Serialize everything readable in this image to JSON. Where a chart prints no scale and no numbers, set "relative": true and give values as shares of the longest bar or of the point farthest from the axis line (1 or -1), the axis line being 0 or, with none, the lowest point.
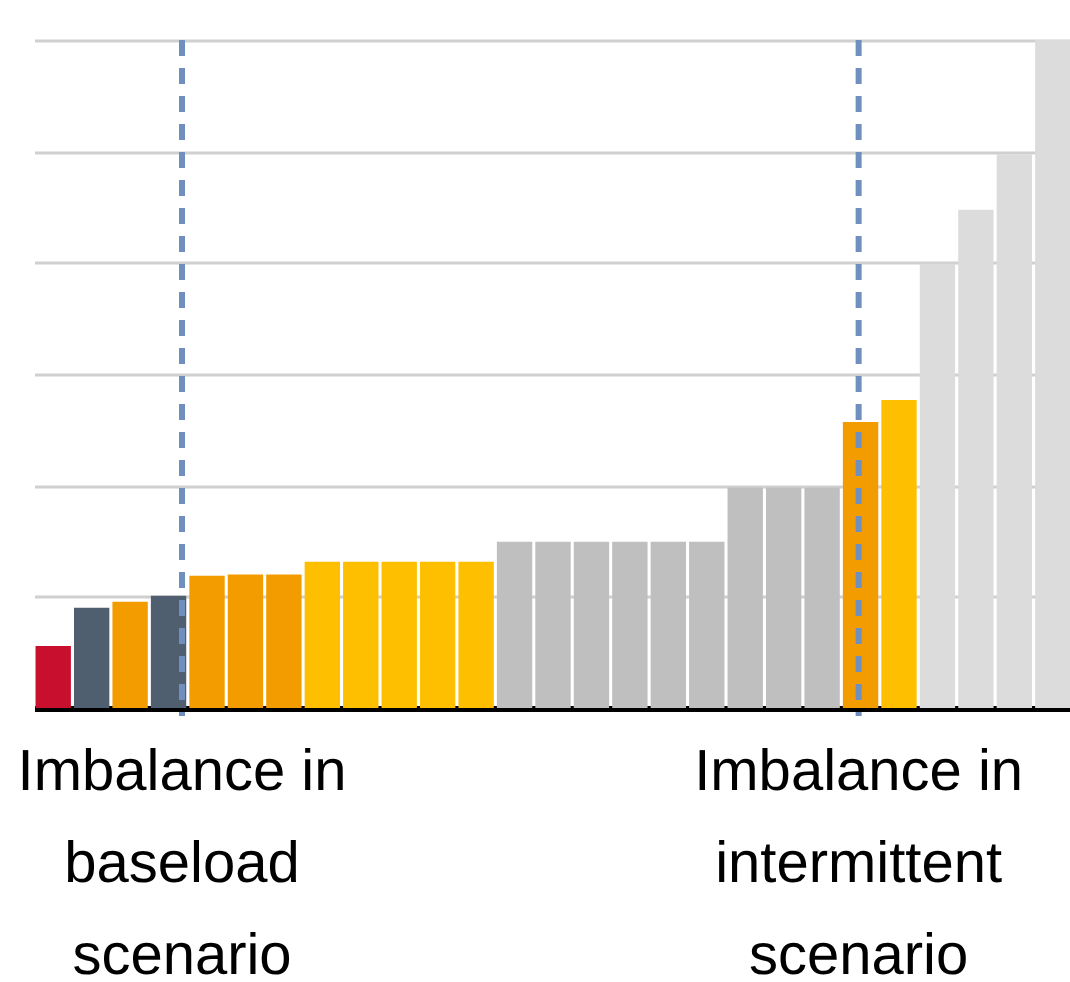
{
  "chart_data": {
    "type": "bar",
    "relative": true,
    "grid": "y",
    "categories": [
      null,
      null,
      null,
      null,
      null,
      null,
      null,
      null,
      null,
      null,
      null,
      null,
      null,
      null,
      null,
      null,
      null,
      null,
      null,
      null,
      null,
      null,
      null,
      null,
      null,
      null,
      null
    ],
    "values": [
      0.093,
      0.15,
      0.159,
      0.168,
      0.198,
      0.2,
      0.2,
      0.219,
      0.219,
      0.219,
      0.219,
      0.219,
      0.249,
      0.249,
      0.249,
      0.249,
      0.249,
      0.249,
      0.33,
      0.33,
      0.33,
      0.428,
      0.461,
      0.665,
      0.746,
      0.829,
      1.0
    ],
    "colors": [
      "#c8102e",
      "#4f5f6f",
      "#f39c00",
      "#4f5f6f",
      "#f39c00",
      "#f39c00",
      "#f39c00",
      "#fdbf00",
      "#fdbf00",
      "#fdbf00",
      "#fdbf00",
      "#fdbf00",
      "#bfbfbf",
      "#bfbfbf",
      "#bfbfbf",
      "#bfbfbf",
      "#bfbfbf",
      "#bfbfbf",
      "#bfbfbf",
      "#bfbfbf",
      "#bfbfbf",
      "#f39c00",
      "#fdbf00",
      "#dcdcdc",
      "#dcdcdc",
      "#dcdcdc",
      "#dcdcdc"
    ],
    "annotations": [
      "Imbalance in baseload scenario",
      "Imbalance in intermittent scenario"
    ]
  }
}
